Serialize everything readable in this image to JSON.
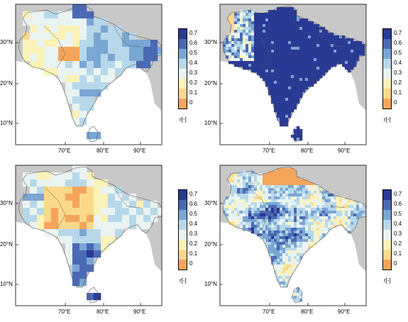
{
  "colorbar": {
    "labels": [
      "0.7",
      "0.6",
      "0.5",
      "0.4",
      "0.3",
      "0.2",
      "0.1",
      "0"
    ],
    "unit": "r[-]",
    "colors": [
      "#293a94",
      "#4b69b4",
      "#7aa6d4",
      "#b7d8ea",
      "#e9f4f2",
      "#fbf2b8",
      "#fbd98b",
      "#f5a55a"
    ]
  },
  "axes": {
    "lat_labels": [
      "30°N",
      "20°N",
      "10°N"
    ],
    "lon_labels": [
      "70°E",
      "80°E",
      "90°E"
    ]
  },
  "colors": {
    "land_background": "#c8c8c8",
    "sea": "#ffffff"
  },
  "panels": [
    {
      "id": "top-left",
      "pattern": "mixed-east-blue"
    },
    {
      "id": "top-right",
      "pattern": "mostly-high"
    },
    {
      "id": "bottom-left",
      "pattern": "orange-north-blue-south"
    },
    {
      "id": "bottom-right",
      "pattern": "fine-mixed"
    }
  ]
}
